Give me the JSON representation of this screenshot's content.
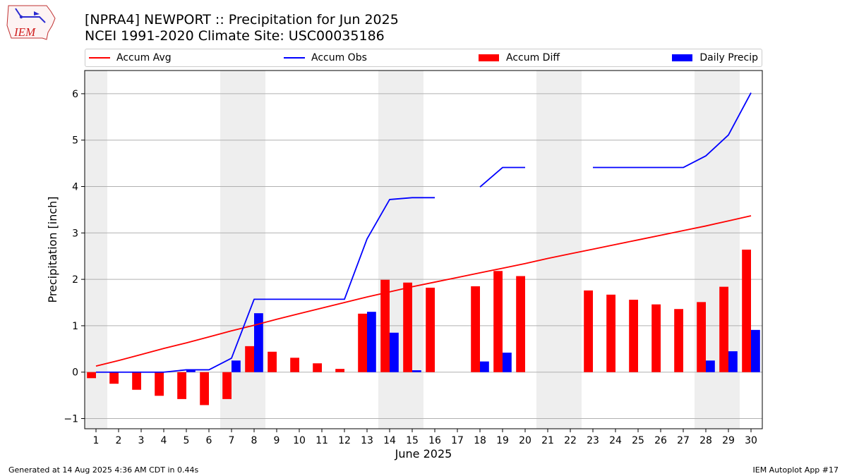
{
  "header": {
    "title": "[NPRA4] NEWPORT :: Precipitation for Jun 2025",
    "subtitle": "NCEI 1991-2020 Climate Site: USC00035186",
    "logo_text": "IEM"
  },
  "footer": {
    "generated": "Generated at 14 Aug 2025 4:36 AM CDT in 0.44s",
    "app": "IEM Autoplot App #17"
  },
  "colors": {
    "accum_avg": "#ff0000",
    "accum_obs": "#0000ff",
    "accum_diff": "#ff0000",
    "daily_precip": "#0000ff",
    "weekend_shade": "#eeeeee",
    "grid": "#b0b0b0"
  },
  "legend": [
    {
      "label": "Accum Avg",
      "kind": "line",
      "color": "#ff0000"
    },
    {
      "label": "Accum Obs",
      "kind": "line",
      "color": "#0000ff"
    },
    {
      "label": "Accum Diff",
      "kind": "patch",
      "color": "#ff0000"
    },
    {
      "label": "Daily Precip",
      "kind": "patch",
      "color": "#0000ff"
    }
  ],
  "chart_data": {
    "type": "bar",
    "title": "[NPRA4] NEWPORT :: Precipitation for Jun 2025",
    "xlabel": "June 2025",
    "ylabel": "Precipitation [inch]",
    "ylim": [
      -1.22,
      6.5
    ],
    "yticks": [
      -1,
      0,
      1,
      2,
      3,
      4,
      5,
      6
    ],
    "grid": true,
    "legend_position": "top",
    "days": [
      1,
      2,
      3,
      4,
      5,
      6,
      7,
      8,
      9,
      10,
      11,
      12,
      13,
      14,
      15,
      16,
      17,
      18,
      19,
      20,
      21,
      22,
      23,
      24,
      25,
      26,
      27,
      28,
      29,
      30
    ],
    "weekend_spans": [
      [
        0.5,
        1.5
      ],
      [
        6.5,
        8.5
      ],
      [
        13.5,
        15.5
      ],
      [
        20.5,
        22.5
      ],
      [
        27.5,
        29.5
      ]
    ],
    "series": [
      {
        "name": "Accum Avg",
        "kind": "line",
        "values": [
          0.13,
          0.25,
          0.38,
          0.51,
          0.63,
          0.76,
          0.89,
          1.01,
          1.14,
          1.26,
          1.38,
          1.5,
          1.62,
          1.73,
          1.84,
          1.94,
          2.04,
          2.14,
          2.24,
          2.34,
          2.45,
          2.55,
          2.65,
          2.75,
          2.85,
          2.95,
          3.05,
          3.15,
          3.26,
          3.37
        ]
      },
      {
        "name": "Accum Obs",
        "kind": "line",
        "values": [
          0,
          0,
          0,
          0,
          0.05,
          0.05,
          0.3,
          1.57,
          1.57,
          1.57,
          1.57,
          1.57,
          2.87,
          3.72,
          3.76,
          3.76,
          null,
          3.99,
          4.41,
          4.41,
          null,
          null,
          4.41,
          4.41,
          4.41,
          4.41,
          4.41,
          4.66,
          5.11,
          6.02
        ]
      },
      {
        "name": "Accum Diff",
        "kind": "bar",
        "values": [
          -0.13,
          -0.25,
          -0.38,
          -0.51,
          -0.58,
          -0.71,
          -0.58,
          0.56,
          0.44,
          0.31,
          0.19,
          0.07,
          1.26,
          1.99,
          1.93,
          1.82,
          null,
          1.85,
          2.18,
          2.07,
          null,
          null,
          1.76,
          1.67,
          1.56,
          1.46,
          1.36,
          1.51,
          1.84,
          2.64
        ]
      },
      {
        "name": "Daily Precip",
        "kind": "bar",
        "values": [
          0,
          0,
          0,
          0,
          0.05,
          0,
          0.25,
          1.27,
          0,
          0,
          0,
          0,
          1.3,
          0.85,
          0.04,
          0,
          null,
          0.23,
          0.42,
          0,
          null,
          null,
          0,
          0,
          0,
          0,
          0,
          0.25,
          0.45,
          0.91
        ]
      }
    ]
  }
}
